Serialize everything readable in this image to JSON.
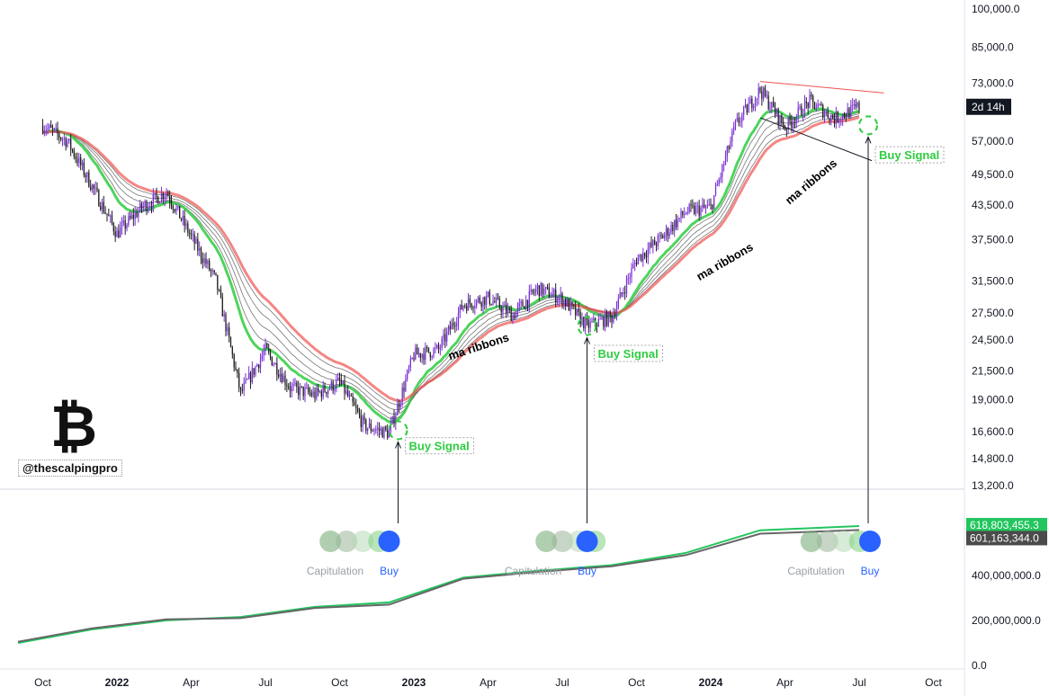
{
  "chart_data": [
    {
      "type": "candlestick",
      "title": "",
      "scale": "log",
      "ylim": [
        13200,
        100000
      ],
      "y_ticks": [
        "100,000.0",
        "85,000.0",
        "73,000.0",
        "57,000.0",
        "49,500.0",
        "43,500.0",
        "37,500.0",
        "31,500.0",
        "27,500.0",
        "24,500.0",
        "21,500.0",
        "19,000.0",
        "16,600.0",
        "14,800.0",
        "13,200.0"
      ],
      "x_ticks": [
        "Oct",
        "2022",
        "Apr",
        "Jul",
        "Oct",
        "2023",
        "Apr",
        "Jul",
        "Oct",
        "2024",
        "Apr",
        "Jul",
        "Oct"
      ],
      "price_label": "2d 14h",
      "colors": {
        "up": "#7b2fd6",
        "down": "#1e1e1e",
        "ema_fast": "#2ecc40",
        "ema_slow": "#ef5350",
        "ribbon": "#555555"
      },
      "x": [
        "2021-10",
        "2021-11",
        "2021-12",
        "2022-01",
        "2022-02",
        "2022-03",
        "2022-04",
        "2022-05",
        "2022-06",
        "2022-07",
        "2022-08",
        "2022-09",
        "2022-10",
        "2022-11",
        "2022-12",
        "2023-01",
        "2023-02",
        "2023-03",
        "2023-04",
        "2023-05",
        "2023-06",
        "2023-07",
        "2023-08",
        "2023-09",
        "2023-10",
        "2023-11",
        "2023-12",
        "2024-01",
        "2024-02",
        "2024-03",
        "2024-04",
        "2024-05",
        "2024-06",
        "2024-07"
      ],
      "close": [
        61000,
        57000,
        47000,
        38500,
        43000,
        46000,
        38000,
        31500,
        19500,
        23500,
        20000,
        19400,
        20500,
        17000,
        16500,
        23000,
        23500,
        28500,
        29300,
        27200,
        30500,
        29200,
        26000,
        27000,
        34500,
        37800,
        42300,
        43000,
        61000,
        71000,
        60500,
        67500,
        62700,
        66000
      ],
      "annotations": [
        {
          "text": "ma ribbons",
          "date": "2023-03"
        },
        {
          "text": "ma ribbons",
          "date": "2023-12"
        },
        {
          "text": "ma ribbons",
          "date": "2024-04"
        },
        {
          "text": "Buy Signal",
          "date": "2022-12"
        },
        {
          "text": "Buy Signal",
          "date": "2023-08"
        },
        {
          "text": "Buy Signal",
          "date": "2024-07"
        }
      ]
    },
    {
      "type": "line",
      "ylim": [
        0,
        618803455.3
      ],
      "y_ticks": [
        "400,000,000.0",
        "200,000,000.0",
        "0.0"
      ],
      "last_values": [
        "618,803,455.3",
        "601,163,344.0"
      ],
      "x": [
        "2021-09",
        "2021-12",
        "2022-03",
        "2022-06",
        "2022-09",
        "2022-12",
        "2023-03",
        "2023-06",
        "2023-09",
        "2023-12",
        "2024-03",
        "2024-07"
      ],
      "series": [
        {
          "values": [
            100000000,
            160000000,
            200000000,
            215000000,
            260000000,
            280000000,
            390000000,
            420000000,
            445000000,
            500000000,
            600000000,
            618803455
          ]
        },
        {
          "values": [
            105000000,
            165000000,
            205000000,
            210000000,
            255000000,
            270000000,
            385000000,
            415000000,
            440000000,
            490000000,
            585000000,
            601163344
          ]
        }
      ],
      "signals": [
        {
          "labels": [
            "Capitulation",
            "Buy"
          ],
          "date": "2022-12"
        },
        {
          "labels": [
            "Capitulation",
            "Buy"
          ],
          "date": "2023-08"
        },
        {
          "labels": [
            "Capitulation",
            "Buy"
          ],
          "date": "2024-07"
        }
      ]
    }
  ],
  "branding": {
    "symbol": "₿",
    "handle": "@thescalpingpro"
  }
}
